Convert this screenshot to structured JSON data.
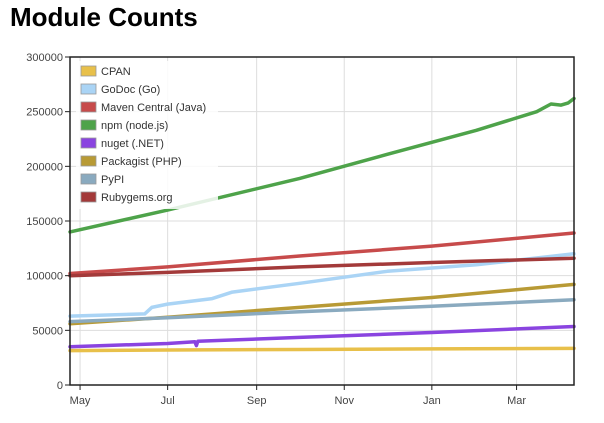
{
  "page_title": "Module Counts",
  "chart_data": {
    "type": "line",
    "title": "Module Counts",
    "xlabel": "",
    "ylabel": "",
    "x_range": [
      "2014-04-24",
      "2015-04-10"
    ],
    "ylim": [
      0,
      300000
    ],
    "y_ticks": [
      0,
      50000,
      100000,
      150000,
      200000,
      250000,
      300000
    ],
    "y_tick_labels": [
      "0",
      "50000",
      "100000",
      "150000",
      "200000",
      "250000",
      "300000"
    ],
    "x_ticks": [
      {
        "date": "2014-05-01",
        "label": "May"
      },
      {
        "date": "2014-07-01",
        "label": "Jul"
      },
      {
        "date": "2014-09-01",
        "label": "Sep"
      },
      {
        "date": "2014-11-01",
        "label": "Nov"
      },
      {
        "date": "2015-01-01",
        "label": "Jan"
      },
      {
        "date": "2015-03-01",
        "label": "Mar"
      }
    ],
    "grid": true,
    "legend_position": "top-left",
    "series": [
      {
        "name": "CPAN",
        "color": "#e8c04a",
        "points": [
          [
            "2014-04-24",
            31500
          ],
          [
            "2014-07-01",
            32000
          ],
          [
            "2014-10-01",
            32500
          ],
          [
            "2015-01-01",
            33000
          ],
          [
            "2015-04-10",
            33500
          ]
        ]
      },
      {
        "name": "GoDoc (Go)",
        "color": "#aad4f5",
        "points": [
          [
            "2014-04-24",
            63000
          ],
          [
            "2014-06-15",
            65000
          ],
          [
            "2014-06-20",
            71000
          ],
          [
            "2014-07-01",
            74000
          ],
          [
            "2014-08-01",
            79000
          ],
          [
            "2014-08-15",
            85000
          ],
          [
            "2014-10-01",
            93000
          ],
          [
            "2014-12-01",
            104000
          ],
          [
            "2015-02-01",
            110000
          ],
          [
            "2015-04-10",
            120000
          ]
        ]
      },
      {
        "name": "Maven Central (Java)",
        "color": "#c74b4b",
        "points": [
          [
            "2014-04-24",
            102000
          ],
          [
            "2014-07-01",
            108000
          ],
          [
            "2014-10-01",
            118000
          ],
          [
            "2015-01-01",
            127000
          ],
          [
            "2015-04-10",
            139000
          ]
        ]
      },
      {
        "name": "npm (node.js)",
        "color": "#4ea34a",
        "points": [
          [
            "2014-04-24",
            140000
          ],
          [
            "2014-07-01",
            160000
          ],
          [
            "2014-10-01",
            189000
          ],
          [
            "2014-12-01",
            211000
          ],
          [
            "2015-02-01",
            233000
          ],
          [
            "2015-03-15",
            250000
          ],
          [
            "2015-03-25",
            257000
          ],
          [
            "2015-04-01",
            256000
          ],
          [
            "2015-04-06",
            258000
          ],
          [
            "2015-04-10",
            262000
          ]
        ]
      },
      {
        "name": "nuget (.NET)",
        "color": "#8a44e0",
        "points": [
          [
            "2014-04-24",
            35000
          ],
          [
            "2014-07-01",
            38000
          ],
          [
            "2014-07-20",
            39500
          ],
          [
            "2014-07-21",
            36000
          ],
          [
            "2014-07-22",
            40000
          ],
          [
            "2014-10-01",
            43500
          ],
          [
            "2015-01-01",
            48000
          ],
          [
            "2015-04-10",
            53500
          ]
        ]
      },
      {
        "name": "Packagist (PHP)",
        "color": "#b89a35",
        "points": [
          [
            "2014-04-24",
            56000
          ],
          [
            "2014-07-01",
            62000
          ],
          [
            "2014-10-01",
            71000
          ],
          [
            "2015-01-01",
            80000
          ],
          [
            "2015-04-10",
            92000
          ]
        ]
      },
      {
        "name": "PyPI",
        "color": "#8aaabf",
        "points": [
          [
            "2014-04-24",
            58000
          ],
          [
            "2014-07-01",
            61500
          ],
          [
            "2014-10-01",
            67000
          ],
          [
            "2015-01-01",
            72000
          ],
          [
            "2015-04-10",
            78000
          ]
        ]
      },
      {
        "name": "Rubygems.org",
        "color": "#a33a3a",
        "points": [
          [
            "2014-04-24",
            100000
          ],
          [
            "2014-07-01",
            103000
          ],
          [
            "2014-10-01",
            108000
          ],
          [
            "2015-01-01",
            112000
          ],
          [
            "2015-04-10",
            116000
          ]
        ]
      }
    ]
  }
}
